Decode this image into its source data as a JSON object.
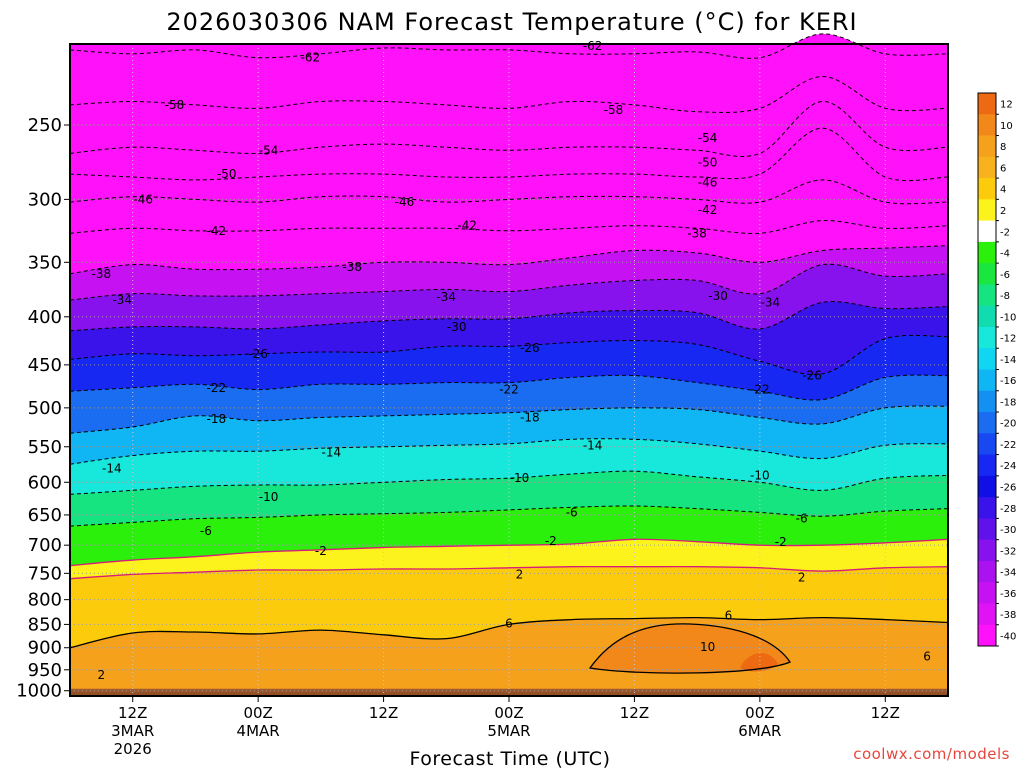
{
  "chart_data": {
    "type": "heatmap",
    "title": "2026030306 NAM Forecast Temperature (°C) for KERI",
    "xlabel": "Forecast Time (UTC)",
    "ylabel": "",
    "credit": "coolwx.com/models",
    "y_axis": {
      "scale": "pressure",
      "range_hpa": [
        1013,
        205
      ],
      "ticks": [
        "250",
        "300",
        "350",
        "400",
        "450",
        "500",
        "550",
        "600",
        "650",
        "700",
        "750",
        "800",
        "850",
        "900",
        "950",
        "1000"
      ],
      "tick_values": [
        250,
        300,
        350,
        400,
        450,
        500,
        550,
        600,
        650,
        700,
        750,
        800,
        850,
        900,
        950,
        1000
      ]
    },
    "x_axis": {
      "range_hours": [
        0,
        84
      ],
      "tick_hours": [
        6,
        18,
        30,
        42,
        54,
        66,
        78
      ],
      "ticks": [
        {
          "line1": "12Z",
          "line2": "3MAR",
          "line3": "2026"
        },
        {
          "line1": "00Z",
          "line2": "4MAR",
          "line3": ""
        },
        {
          "line1": "12Z",
          "line2": "",
          "line3": ""
        },
        {
          "line1": "00Z",
          "line2": "5MAR",
          "line3": ""
        },
        {
          "line1": "12Z",
          "line2": "",
          "line3": ""
        },
        {
          "line1": "00Z",
          "line2": "6MAR",
          "line3": ""
        },
        {
          "line1": "12Z",
          "line2": "",
          "line3": ""
        }
      ]
    },
    "grid": true,
    "colorbar": {
      "position": "right",
      "levels": [
        "12",
        "10",
        "8",
        "6",
        "4",
        "2",
        "-2",
        "-4",
        "-6",
        "-8",
        "-10",
        "-12",
        "-14",
        "-16",
        "-18",
        "-20",
        "-22",
        "-24",
        "-26",
        "-28",
        "-30",
        "-32",
        "-34",
        "-36",
        "-38",
        "-40"
      ],
      "colors": [
        "#ee6a12",
        "#f2881a",
        "#f6a11c",
        "#f8b21e",
        "#fccc0c",
        "#fdf31c",
        "#ffffff",
        "#2bf00c",
        "#1ae63e",
        "#16e480",
        "#10dcb0",
        "#18e8dc",
        "#10d6f2",
        "#10b6f4",
        "#1490f2",
        "#1a6cf0",
        "#1848f2",
        "#1628f2",
        "#1010e6",
        "#3a12ea",
        "#6012ea",
        "#8812ee",
        "#aa12f0",
        "#c612f2",
        "#e012f6",
        "#ff12fa"
      ]
    },
    "isotherms_hours": [
      0,
      6,
      12,
      18,
      24,
      30,
      36,
      42,
      48,
      54,
      60,
      66,
      72,
      78,
      84
    ],
    "isotherms": [
      {
        "temp": -62,
        "p": [
          208,
          210,
          208,
          212,
          210,
          207,
          208,
          208,
          210,
          210,
          209,
          212,
          200,
          210,
          210
        ]
      },
      {
        "temp": -58,
        "p": [
          238,
          236,
          238,
          240,
          236,
          236,
          238,
          240,
          236,
          238,
          242,
          240,
          222,
          240,
          240
        ]
      },
      {
        "temp": -54,
        "p": [
          268,
          264,
          266,
          268,
          264,
          262,
          264,
          266,
          264,
          264,
          266,
          268,
          236,
          264,
          264
        ]
      },
      {
        "temp": -50,
        "p": [
          282,
          284,
          286,
          284,
          282,
          282,
          284,
          284,
          282,
          282,
          284,
          282,
          252,
          284,
          284
        ]
      },
      {
        "temp": -46,
        "p": [
          302,
          298,
          300,
          302,
          298,
          298,
          302,
          300,
          298,
          298,
          300,
          302,
          286,
          302,
          302
        ]
      },
      {
        "temp": -42,
        "p": [
          326,
          322,
          324,
          324,
          322,
          322,
          322,
          324,
          322,
          320,
          322,
          326,
          316,
          322,
          320
        ]
      },
      {
        "temp": -38,
        "p": [
          360,
          352,
          356,
          356,
          354,
          350,
          350,
          352,
          346,
          340,
          342,
          350,
          340,
          338,
          336
        ]
      },
      {
        "temp": -34,
        "p": [
          384,
          378,
          380,
          380,
          378,
          376,
          374,
          376,
          370,
          366,
          366,
          378,
          352,
          362,
          360
        ]
      },
      {
        "temp": -30,
        "p": [
          414,
          410,
          410,
          412,
          408,
          404,
          402,
          402,
          396,
          394,
          396,
          412,
          386,
          392,
          390
        ]
      },
      {
        "temp": -26,
        "p": [
          444,
          438,
          440,
          438,
          436,
          436,
          430,
          430,
          426,
          424,
          428,
          446,
          460,
          422,
          420
        ]
      },
      {
        "temp": -22,
        "p": [
          480,
          476,
          472,
          478,
          472,
          472,
          470,
          470,
          464,
          462,
          470,
          480,
          490,
          464,
          462
        ]
      },
      {
        "temp": -18,
        "p": [
          532,
          524,
          510,
          516,
          512,
          510,
          508,
          506,
          502,
          500,
          502,
          512,
          520,
          500,
          498
        ]
      },
      {
        "temp": -14,
        "p": [
          574,
          562,
          556,
          556,
          552,
          550,
          548,
          546,
          540,
          540,
          546,
          556,
          566,
          548,
          546
        ]
      },
      {
        "temp": -10,
        "p": [
          618,
          612,
          606,
          604,
          604,
          600,
          596,
          594,
          588,
          584,
          592,
          600,
          612,
          594,
          590
        ]
      },
      {
        "temp": -6,
        "p": [
          668,
          662,
          656,
          654,
          650,
          648,
          646,
          642,
          638,
          636,
          640,
          646,
          652,
          644,
          640
        ]
      },
      {
        "temp": -2,
        "p": [
          736,
          726,
          720,
          712,
          708,
          704,
          702,
          700,
          698,
          690,
          694,
          700,
          700,
          696,
          690
        ]
      },
      {
        "temp": 2,
        "p": [
          760,
          752,
          748,
          744,
          744,
          742,
          742,
          740,
          738,
          738,
          738,
          740,
          746,
          740,
          738
        ]
      },
      {
        "temp": 6,
        "p": [
          900,
          868,
          866,
          870,
          862,
          872,
          880,
          850,
          840,
          838,
          836,
          840,
          836,
          840,
          846
        ]
      }
    ],
    "contour_labels": [
      {
        "text": "-62",
        "h": 23,
        "p": 212
      },
      {
        "text": "-62",
        "h": 50,
        "p": 206
      },
      {
        "text": "-58",
        "h": 10,
        "p": 238
      },
      {
        "text": "-58",
        "h": 52,
        "p": 241
      },
      {
        "text": "-54",
        "h": 19,
        "p": 266
      },
      {
        "text": "-54",
        "h": 61,
        "p": 258
      },
      {
        "text": "-50",
        "h": 15,
        "p": 282
      },
      {
        "text": "-50",
        "h": 61,
        "p": 274
      },
      {
        "text": "-46",
        "h": 7,
        "p": 300
      },
      {
        "text": "-46",
        "h": 32,
        "p": 302
      },
      {
        "text": "-46",
        "h": 61,
        "p": 288
      },
      {
        "text": "-42",
        "h": 14,
        "p": 324
      },
      {
        "text": "-42",
        "h": 38,
        "p": 320
      },
      {
        "text": "-42",
        "h": 61,
        "p": 308
      },
      {
        "text": "-38",
        "h": 3,
        "p": 360
      },
      {
        "text": "-38",
        "h": 27,
        "p": 354
      },
      {
        "text": "-38",
        "h": 60,
        "p": 326
      },
      {
        "text": "-34",
        "h": 5,
        "p": 384
      },
      {
        "text": "-34",
        "h": 36,
        "p": 381
      },
      {
        "text": "-34",
        "h": 67,
        "p": 386
      },
      {
        "text": "-30",
        "h": 37,
        "p": 410
      },
      {
        "text": "-30",
        "h": 62,
        "p": 380
      },
      {
        "text": "-26",
        "h": 18,
        "p": 438
      },
      {
        "text": "-26",
        "h": 44,
        "p": 432
      },
      {
        "text": "-26",
        "h": 71,
        "p": 462
      },
      {
        "text": "-22",
        "h": 14,
        "p": 476
      },
      {
        "text": "-22",
        "h": 42,
        "p": 478
      },
      {
        "text": "-22",
        "h": 66,
        "p": 478
      },
      {
        "text": "-18",
        "h": 14,
        "p": 514
      },
      {
        "text": "-18",
        "h": 44,
        "p": 512
      },
      {
        "text": "-14",
        "h": 4,
        "p": 580
      },
      {
        "text": "-14",
        "h": 25,
        "p": 558
      },
      {
        "text": "-14",
        "h": 50,
        "p": 548
      },
      {
        "text": "-10",
        "h": 19,
        "p": 622
      },
      {
        "text": "-10",
        "h": 43,
        "p": 594
      },
      {
        "text": "-10",
        "h": 66,
        "p": 590
      },
      {
        "text": "-6",
        "h": 13,
        "p": 676
      },
      {
        "text": "-6",
        "h": 48,
        "p": 646
      },
      {
        "text": "-6",
        "h": 70,
        "p": 656
      },
      {
        "text": "-2",
        "h": 24,
        "p": 710
      },
      {
        "text": "-2",
        "h": 46,
        "p": 693
      },
      {
        "text": "-2",
        "h": 68,
        "p": 695
      },
      {
        "text": "2",
        "h": 43,
        "p": 752
      },
      {
        "text": "2",
        "h": 70,
        "p": 758
      },
      {
        "text": "2",
        "h": 3,
        "p": 962
      },
      {
        "text": "6",
        "h": 42,
        "p": 848
      },
      {
        "text": "6",
        "h": 63,
        "p": 832
      },
      {
        "text": "6",
        "h": 82,
        "p": 920
      },
      {
        "text": "10",
        "h": 61,
        "p": 898
      }
    ]
  }
}
